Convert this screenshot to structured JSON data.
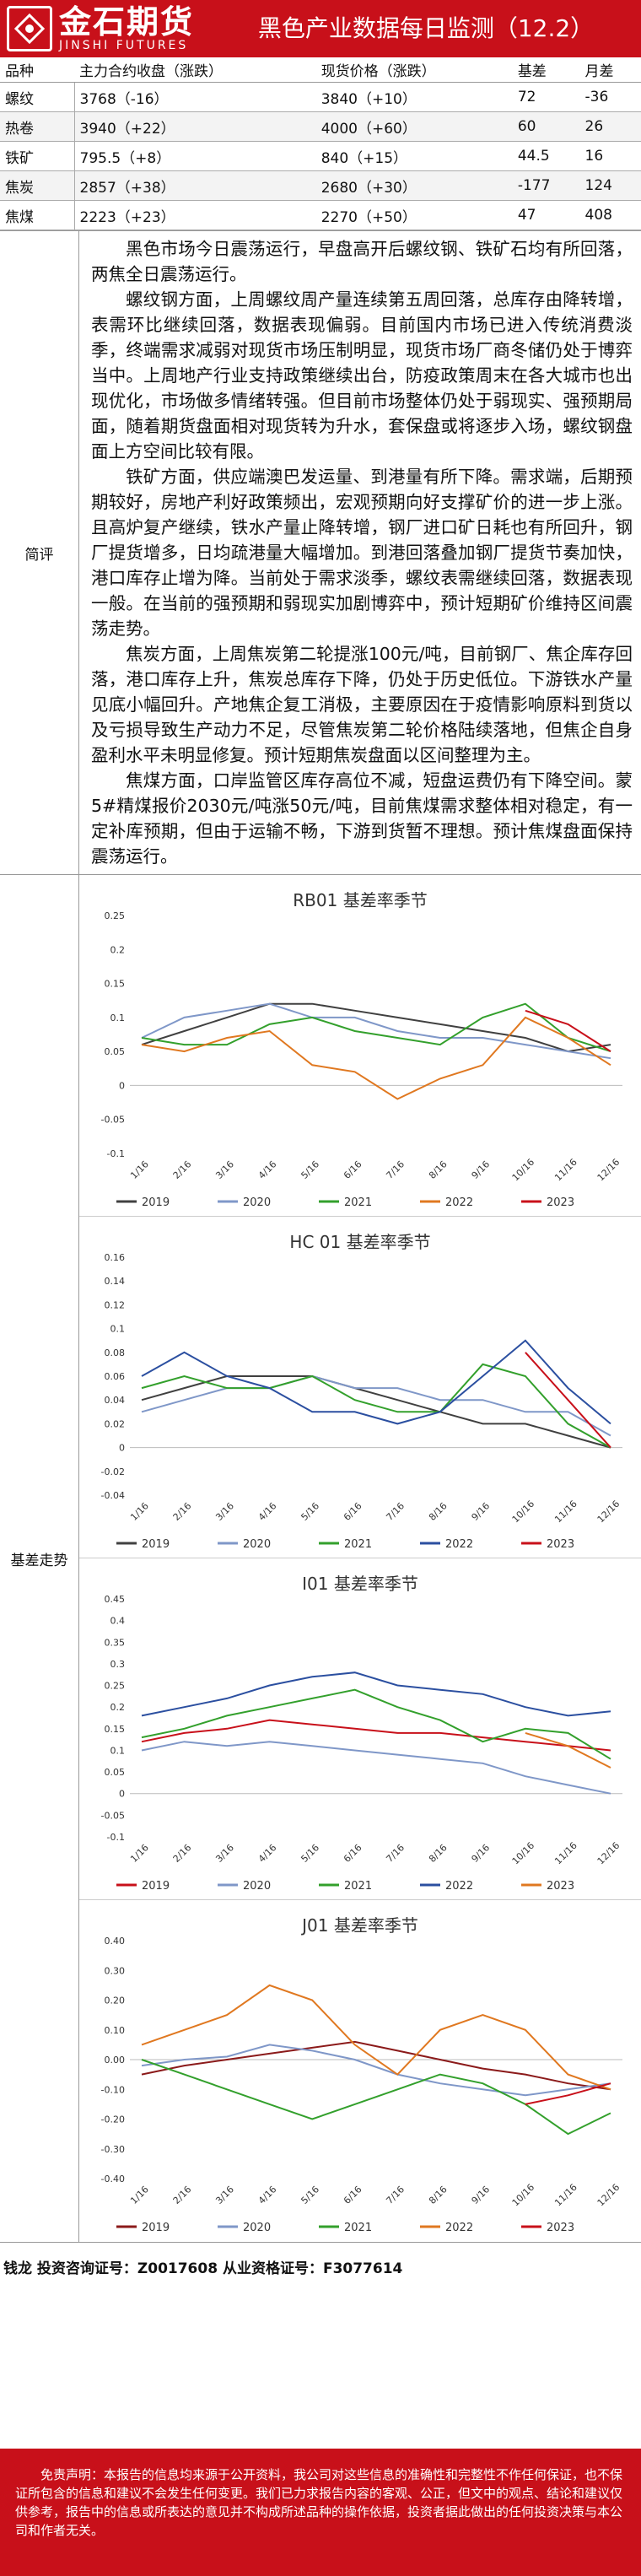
{
  "header": {
    "logo_cn": "金石期货",
    "logo_en": "JINSHI FUTURES",
    "title": "黑色产业数据每日监测（12.2）",
    "brand_color": "#c8101a"
  },
  "price_table": {
    "columns": [
      "品种",
      "主力合约收盘（涨跌）",
      "现货价格（涨跌）",
      "基差",
      "月差"
    ],
    "rows": [
      [
        "螺纹",
        "3768（-16）",
        "3840（+10）",
        "72",
        "-36"
      ],
      [
        "热卷",
        "3940（+22）",
        "4000（+60）",
        "60",
        "26"
      ],
      [
        "铁矿",
        "795.5（+8）",
        "840（+15）",
        "44.5",
        "16"
      ],
      [
        "焦炭",
        "2857（+38）",
        "2680（+30）",
        "-177",
        "124"
      ],
      [
        "焦煤",
        "2223（+23）",
        "2270（+50）",
        "47",
        "408"
      ]
    ]
  },
  "brief": {
    "label": "简评",
    "paragraphs": [
      "黑色市场今日震荡运行，早盘高开后螺纹钢、铁矿石均有所回落，两焦全日震荡运行。",
      "螺纹钢方面，上周螺纹周产量连续第五周回落，总库存由降转增，表需环比继续回落，数据表现偏弱。目前国内市场已进入传统消费淡季，终端需求减弱对现货市场压制明显，现货市场厂商冬储仍处于博弈当中。上周地产行业支持政策继续出台，防疫政策周末在各大城市也出现优化，市场做多情绪转强。但目前市场整体仍处于弱现实、强预期局面，随着期货盘面相对现货转为升水，套保盘或将逐步入场，螺纹钢盘面上方空间比较有限。",
      "铁矿方面，供应端澳巴发运量、到港量有所下降。需求端，后期预期较好，房地产利好政策频出，宏观预期向好支撑矿价的进一步上涨。且高炉复产继续，铁水产量止降转增，钢厂进口矿日耗也有所回升，钢厂提货增多，日均疏港量大幅增加。到港回落叠加钢厂提货节奏加快，港口库存止增为降。当前处于需求淡季，螺纹表需继续回落，数据表现一般。在当前的强预期和弱现实加剧博弈中，预计短期矿价维持区间震荡走势。",
      "焦炭方面，上周焦炭第二轮提涨100元/吨，目前钢厂、焦企库存回落，港口库存上升，焦炭总库存下降，仍处于历史低位。下游铁水产量见底小幅回升。产地焦企复工消极，主要原因在于疫情影响原料到货以及亏损导致生产动力不足，尽管焦炭第二轮价格陆续落地，但焦企自身盈利水平未明显修复。预计短期焦炭盘面以区间整理为主。",
      "焦煤方面，口岸监管区库存高位不减，短盘运费仍有下降空间。蒙5#精煤报价2030元/吨涨50元/吨，目前焦煤需求整体相对稳定，有一定补库预期，但由于运输不畅，下游到货暂不理想。预计焦煤盘面保持震荡运行。"
    ]
  },
  "charts_section": {
    "label": "基差走势"
  },
  "chart_data": [
    {
      "type": "line",
      "title": "RB01 基差率季节",
      "xlabel": "",
      "ylabel": "",
      "x_ticks": [
        "1/16",
        "2/16",
        "3/16",
        "4/16",
        "5/16",
        "6/16",
        "7/16",
        "8/16",
        "9/16",
        "10/16",
        "11/16",
        "12/16"
      ],
      "ylim": [
        -0.1,
        0.25
      ],
      "y_ticks": [
        "-0.1",
        "-0.05",
        "0",
        "0.05",
        "0.1",
        "0.15",
        "0.2",
        "0.25"
      ],
      "y_tick_values": [
        -0.1,
        -0.05,
        0,
        0.05,
        0.1,
        0.15,
        0.2,
        0.25
      ],
      "legend_position": "bottom",
      "series": [
        {
          "name": "2019",
          "color": "#404040",
          "values": [
            0.06,
            0.08,
            0.1,
            0.12,
            0.12,
            0.11,
            0.1,
            0.09,
            0.08,
            0.07,
            0.05,
            0.06
          ]
        },
        {
          "name": "2020",
          "color": "#7f97c8",
          "values": [
            0.07,
            0.1,
            0.11,
            0.12,
            0.1,
            0.1,
            0.08,
            0.07,
            0.07,
            0.06,
            0.05,
            0.04
          ]
        },
        {
          "name": "2021",
          "color": "#33a02c",
          "values": [
            0.07,
            0.06,
            0.06,
            0.09,
            0.1,
            0.08,
            0.07,
            0.06,
            0.1,
            0.12,
            0.07,
            0.05
          ]
        },
        {
          "name": "2022",
          "color": "#e07820",
          "values": [
            0.06,
            0.05,
            0.07,
            0.08,
            0.03,
            0.02,
            -0.02,
            0.01,
            0.03,
            0.1,
            0.07,
            0.03
          ]
        },
        {
          "name": "2023",
          "color": "#c8101a",
          "values": [
            null,
            null,
            null,
            null,
            null,
            null,
            null,
            null,
            null,
            0.11,
            0.09,
            0.05
          ]
        }
      ]
    },
    {
      "type": "line",
      "title": "HC 01 基差率季节",
      "xlabel": "",
      "ylabel": "",
      "x_ticks": [
        "1/16",
        "2/16",
        "3/16",
        "4/16",
        "5/16",
        "6/16",
        "7/16",
        "8/16",
        "9/16",
        "10/16",
        "11/16",
        "12/16"
      ],
      "ylim": [
        -0.04,
        0.16
      ],
      "y_ticks": [
        "-0.04",
        "-0.02",
        "0",
        "0.02",
        "0.04",
        "0.06",
        "0.08",
        "0.1",
        "0.12",
        "0.14",
        "0.16"
      ],
      "y_tick_values": [
        -0.04,
        -0.02,
        0,
        0.02,
        0.04,
        0.06,
        0.08,
        0.1,
        0.12,
        0.14,
        0.16
      ],
      "legend_position": "bottom",
      "series": [
        {
          "name": "2019",
          "color": "#404040",
          "values": [
            0.04,
            0.05,
            0.06,
            0.06,
            0.06,
            0.05,
            0.04,
            0.03,
            0.02,
            0.02,
            0.01,
            0.0
          ]
        },
        {
          "name": "2020",
          "color": "#7f97c8",
          "values": [
            0.03,
            0.04,
            0.05,
            0.05,
            0.06,
            0.05,
            0.05,
            0.04,
            0.04,
            0.03,
            0.03,
            0.01
          ]
        },
        {
          "name": "2021",
          "color": "#33a02c",
          "values": [
            0.05,
            0.06,
            0.05,
            0.05,
            0.06,
            0.04,
            0.03,
            0.03,
            0.07,
            0.06,
            0.02,
            0.0
          ]
        },
        {
          "name": "2022",
          "color": "#2b4fa0",
          "values": [
            0.06,
            0.08,
            0.06,
            0.05,
            0.03,
            0.03,
            0.02,
            0.03,
            0.06,
            0.09,
            0.05,
            0.02
          ]
        },
        {
          "name": "2023",
          "color": "#c8101a",
          "values": [
            null,
            null,
            null,
            null,
            null,
            null,
            null,
            null,
            null,
            0.08,
            0.04,
            0.0
          ]
        }
      ]
    },
    {
      "type": "line",
      "title": "I01 基差率季节",
      "xlabel": "",
      "ylabel": "",
      "x_ticks": [
        "1/16",
        "2/16",
        "3/16",
        "4/16",
        "5/16",
        "6/16",
        "7/16",
        "8/16",
        "9/16",
        "10/16",
        "11/16",
        "12/16"
      ],
      "ylim": [
        -0.1,
        0.45
      ],
      "y_ticks": [
        "-0.1",
        "-0.05",
        "0",
        "0.05",
        "0.1",
        "0.15",
        "0.2",
        "0.25",
        "0.3",
        "0.35",
        "0.4",
        "0.45"
      ],
      "y_tick_values": [
        -0.1,
        -0.05,
        0,
        0.05,
        0.1,
        0.15,
        0.2,
        0.25,
        0.3,
        0.35,
        0.4,
        0.45
      ],
      "legend_position": "bottom",
      "series": [
        {
          "name": "2019",
          "color": "#c8101a",
          "values": [
            0.12,
            0.14,
            0.15,
            0.17,
            0.16,
            0.15,
            0.14,
            0.14,
            0.13,
            0.12,
            0.11,
            0.1
          ]
        },
        {
          "name": "2020",
          "color": "#7f97c8",
          "values": [
            0.1,
            0.12,
            0.11,
            0.12,
            0.11,
            0.1,
            0.09,
            0.08,
            0.07,
            0.04,
            0.02,
            0.0
          ]
        },
        {
          "name": "2021",
          "color": "#33a02c",
          "values": [
            0.13,
            0.15,
            0.18,
            0.2,
            0.22,
            0.24,
            0.2,
            0.17,
            0.12,
            0.15,
            0.14,
            0.08
          ]
        },
        {
          "name": "2022",
          "color": "#2b4fa0",
          "values": [
            0.18,
            0.2,
            0.22,
            0.25,
            0.27,
            0.28,
            0.25,
            0.24,
            0.23,
            0.2,
            0.18,
            0.19
          ]
        },
        {
          "name": "2023",
          "color": "#e07820",
          "values": [
            null,
            null,
            null,
            null,
            null,
            null,
            null,
            null,
            null,
            0.14,
            0.11,
            0.06
          ]
        }
      ]
    },
    {
      "type": "line",
      "title": "J01 基差率季节",
      "xlabel": "",
      "ylabel": "",
      "x_ticks": [
        "1/16",
        "2/16",
        "3/16",
        "4/16",
        "5/16",
        "6/16",
        "7/16",
        "8/16",
        "9/16",
        "10/16",
        "11/16",
        "12/16"
      ],
      "ylim": [
        -0.4,
        0.4
      ],
      "y_ticks": [
        "-0.40",
        "-0.30",
        "-0.20",
        "-0.10",
        "0.00",
        "0.10",
        "0.20",
        "0.30",
        "0.40"
      ],
      "y_tick_values": [
        -0.4,
        -0.3,
        -0.2,
        -0.1,
        0,
        0.1,
        0.2,
        0.3,
        0.4
      ],
      "legend_position": "bottom",
      "series": [
        {
          "name": "2019",
          "color": "#8b1a1a",
          "values": [
            -0.05,
            -0.02,
            0.0,
            0.02,
            0.04,
            0.06,
            0.03,
            0.0,
            -0.03,
            -0.05,
            -0.08,
            -0.1
          ]
        },
        {
          "name": "2020",
          "color": "#7f97c8",
          "values": [
            -0.02,
            0.0,
            0.01,
            0.05,
            0.03,
            0.0,
            -0.05,
            -0.08,
            -0.1,
            -0.12,
            -0.1,
            -0.08
          ]
        },
        {
          "name": "2021",
          "color": "#33a02c",
          "values": [
            0.0,
            -0.05,
            -0.1,
            -0.15,
            -0.2,
            -0.15,
            -0.1,
            -0.05,
            -0.08,
            -0.15,
            -0.25,
            -0.18
          ]
        },
        {
          "name": "2022",
          "color": "#e07820",
          "values": [
            0.05,
            0.1,
            0.15,
            0.25,
            0.2,
            0.05,
            -0.05,
            0.1,
            0.15,
            0.1,
            -0.05,
            -0.1
          ]
        },
        {
          "name": "2023",
          "color": "#c8101a",
          "values": [
            null,
            null,
            null,
            null,
            null,
            null,
            null,
            null,
            null,
            -0.15,
            -0.12,
            -0.08
          ]
        }
      ]
    }
  ],
  "analyst": "钱龙 投资咨询证号：Z0017608  从业资格证号：F3077614",
  "disclaimer": "免责声明：本报告的信息均来源于公开资料，我公司对这些信息的准确性和完整性不作任何保证，也不保证所包含的信息和建议不会发生任何变更。我们已力求报告内容的客观、公正，但文中的观点、结论和建议仅供参考，报告中的信息或所表达的意见并不构成所述品种的操作依据，投资者据此做出的任何投资决策与本公司和作者无关。"
}
